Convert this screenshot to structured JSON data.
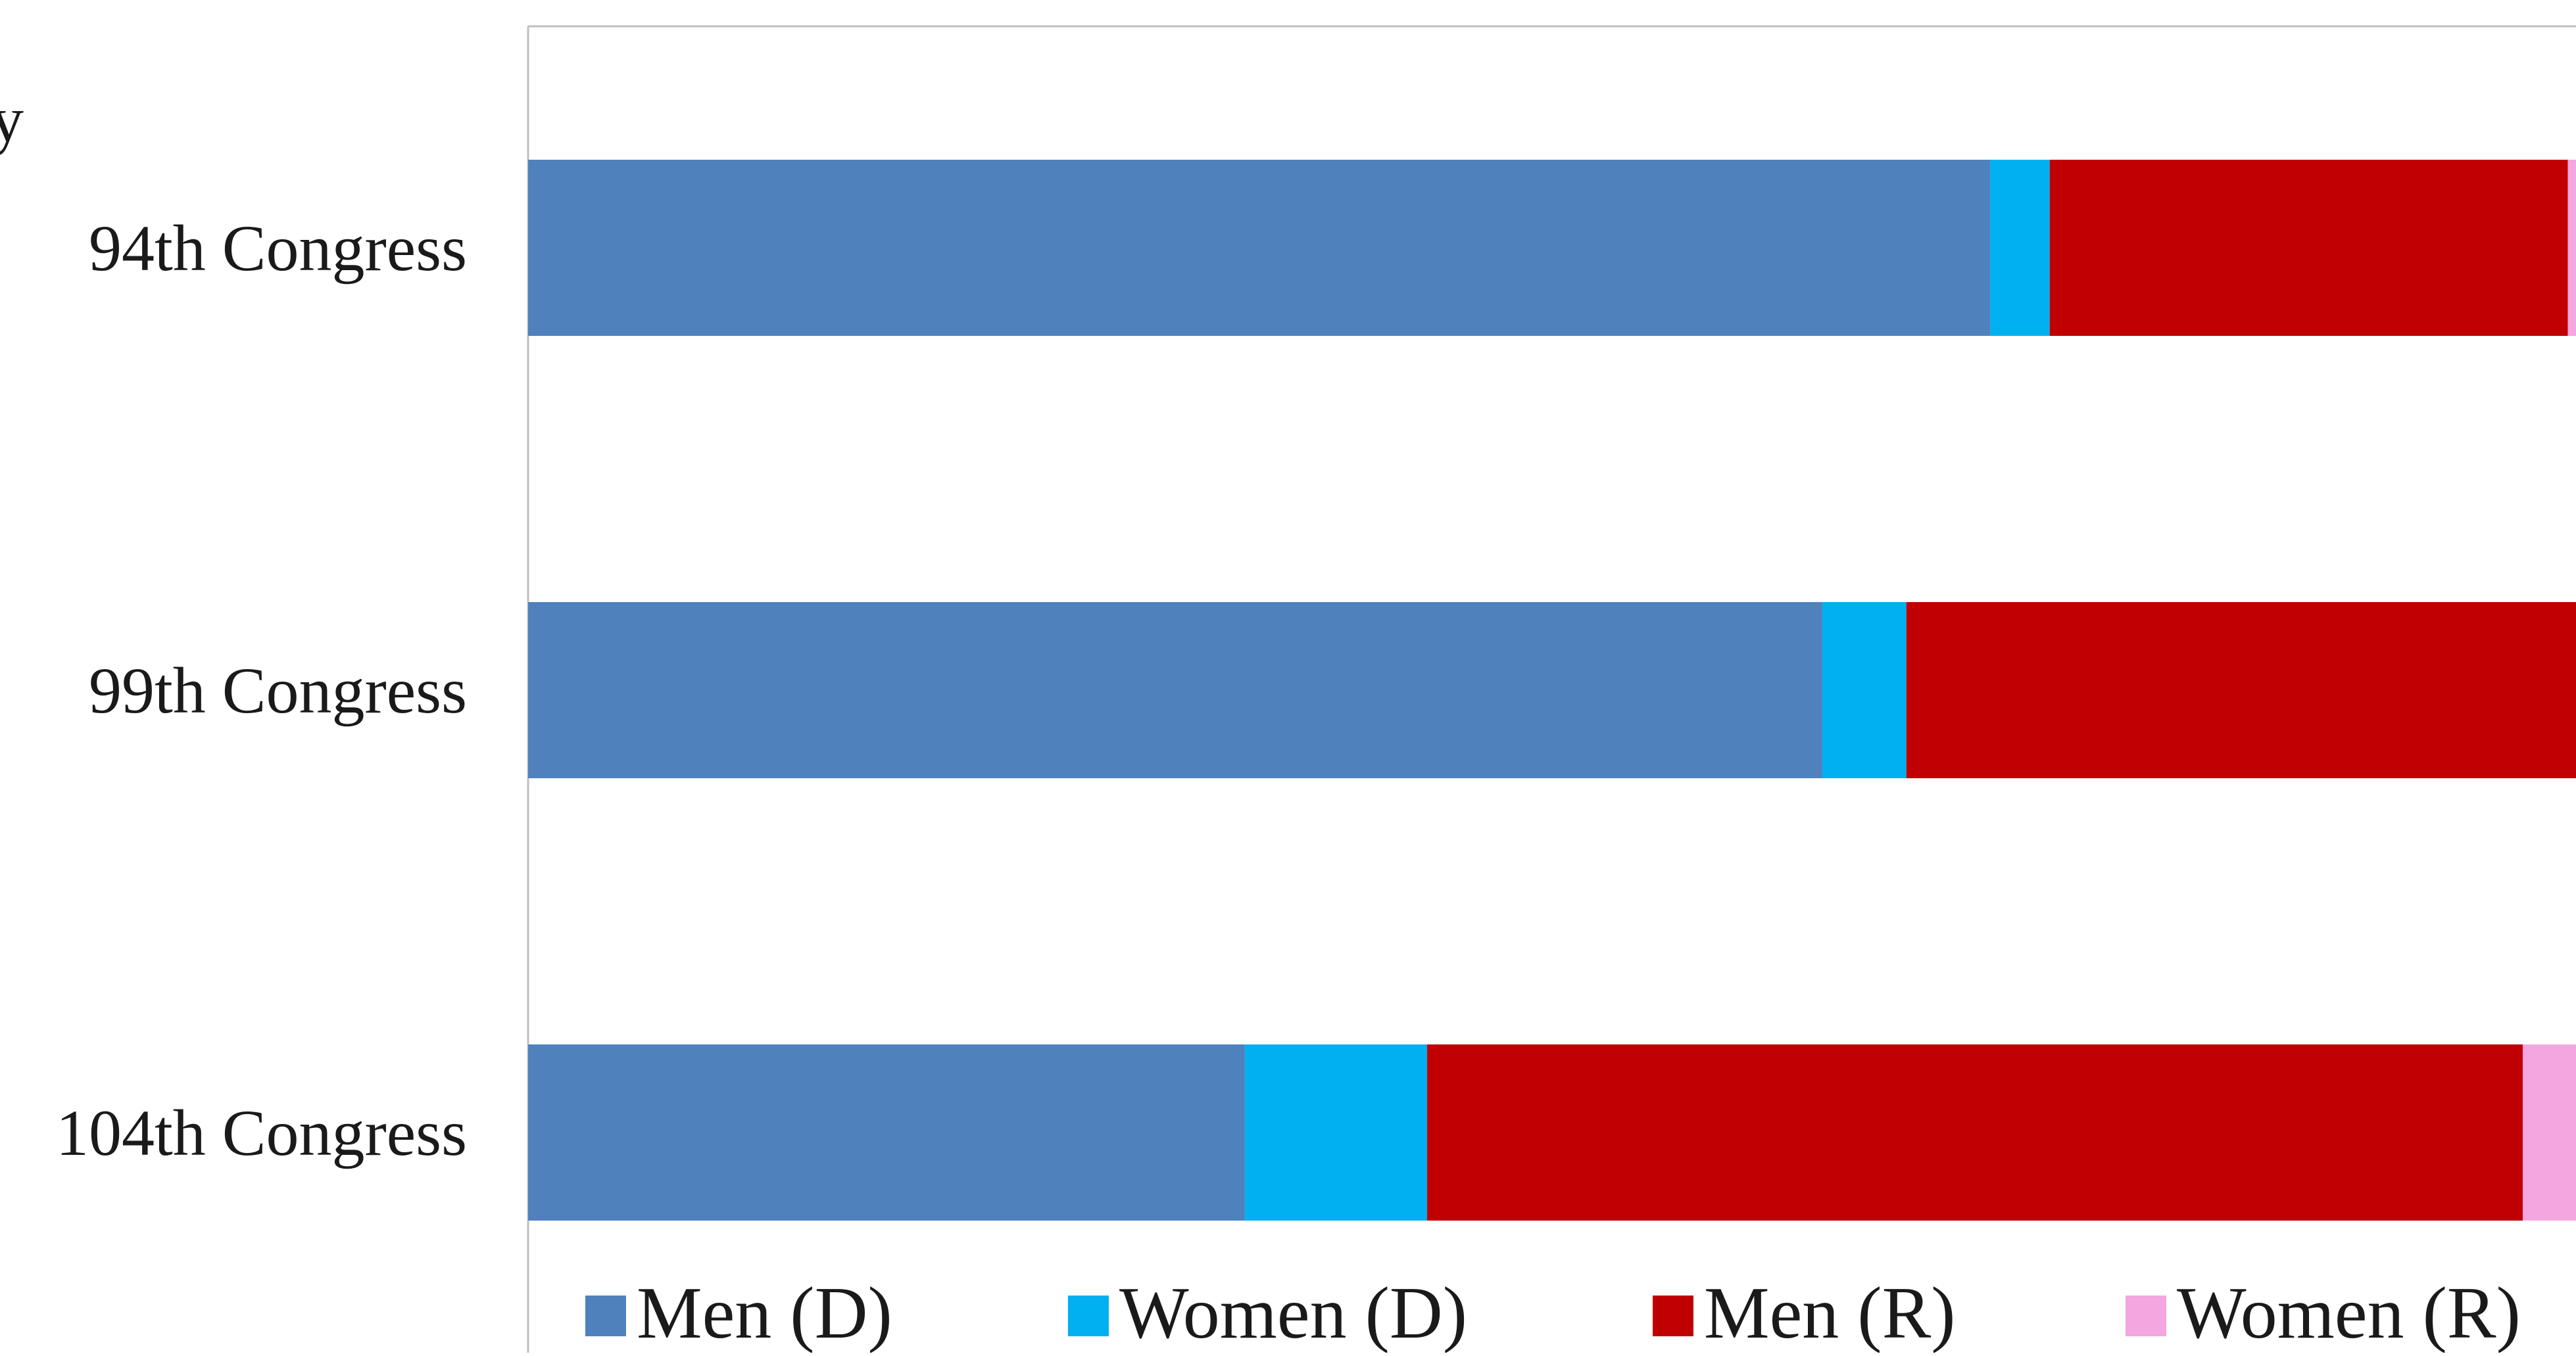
{
  "chart_data": {
    "type": "bar",
    "orientation": "horizontal",
    "stacked": true,
    "categories": [
      "94th Congress",
      "99th Congress",
      "104th Congress"
    ],
    "series": [
      {
        "name": "Men (D)",
        "color": "#4F81BD",
        "values": [
          0.714,
          0.632,
          0.35
        ]
      },
      {
        "name": "Women (D)",
        "color": "#00B0F0",
        "values": [
          0.029,
          0.041,
          0.089
        ]
      },
      {
        "name": "Men (R)",
        "color": "#C00000",
        "values": [
          0.253,
          0.327,
          0.535
        ]
      },
      {
        "name": "Women (R)",
        "color": "#F4A6E0",
        "values": [
          0.004,
          0.0,
          0.026
        ]
      }
    ],
    "xlim": [
      0,
      1
    ],
    "legend_position": "bottom",
    "partial_title_fragment": "y"
  }
}
